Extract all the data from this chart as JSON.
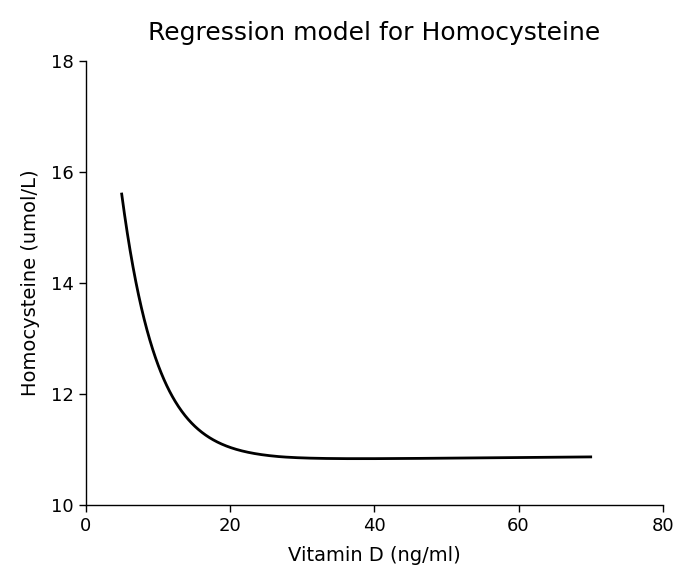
{
  "title": "Regression model for Homocysteine",
  "xlabel": "Vitamin D (ng/ml)",
  "ylabel": "Homocysteine (umol/L)",
  "xlim": [
    0,
    80
  ],
  "ylim": [
    10,
    18
  ],
  "xticks": [
    0,
    20,
    40,
    60,
    80
  ],
  "yticks": [
    10,
    12,
    14,
    16,
    18
  ],
  "line_color": "#000000",
  "line_width": 2.0,
  "background_color": "#ffffff",
  "title_fontsize": 18,
  "label_fontsize": 14,
  "tick_fontsize": 13,
  "curve_x_start": 5,
  "curve_x_flat": 27,
  "curve_x_end": 70,
  "curve_y_start": 15.6,
  "curve_y_flat": 10.82,
  "curve_y_end": 10.87
}
